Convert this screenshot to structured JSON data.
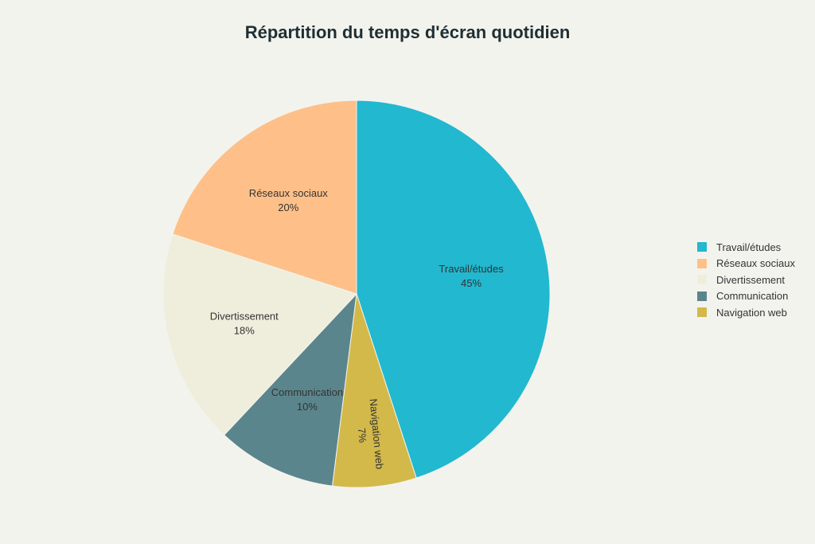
{
  "chart_data": {
    "type": "pie",
    "title": "Répartition du temps d'écran quotidien",
    "start_angle_deg": 0,
    "direction": "clockwise",
    "legend_position": "right",
    "slices": [
      {
        "label": "Travail/études",
        "value": 45,
        "value_label": "45%",
        "color": "#22b8cf"
      },
      {
        "label": "Navigation web",
        "value": 7,
        "value_label": "7%",
        "color": "#d3b94a",
        "label_rotated": true
      },
      {
        "label": "Communication",
        "value": 10,
        "value_label": "10%",
        "color": "#5b858c"
      },
      {
        "label": "Divertissement",
        "value": 18,
        "value_label": "18%",
        "color": "#efeedd"
      },
      {
        "label": "Réseaux sociaux",
        "value": 20,
        "value_label": "20%",
        "color": "#fec088"
      }
    ],
    "legend": [
      {
        "label": "Travail/études",
        "color": "#22b8cf"
      },
      {
        "label": "Réseaux sociaux",
        "color": "#fec088"
      },
      {
        "label": "Divertissement",
        "color": "#efeedd"
      },
      {
        "label": "Communication",
        "color": "#5b858c"
      },
      {
        "label": "Navigation web",
        "color": "#d3b94a"
      }
    ]
  }
}
